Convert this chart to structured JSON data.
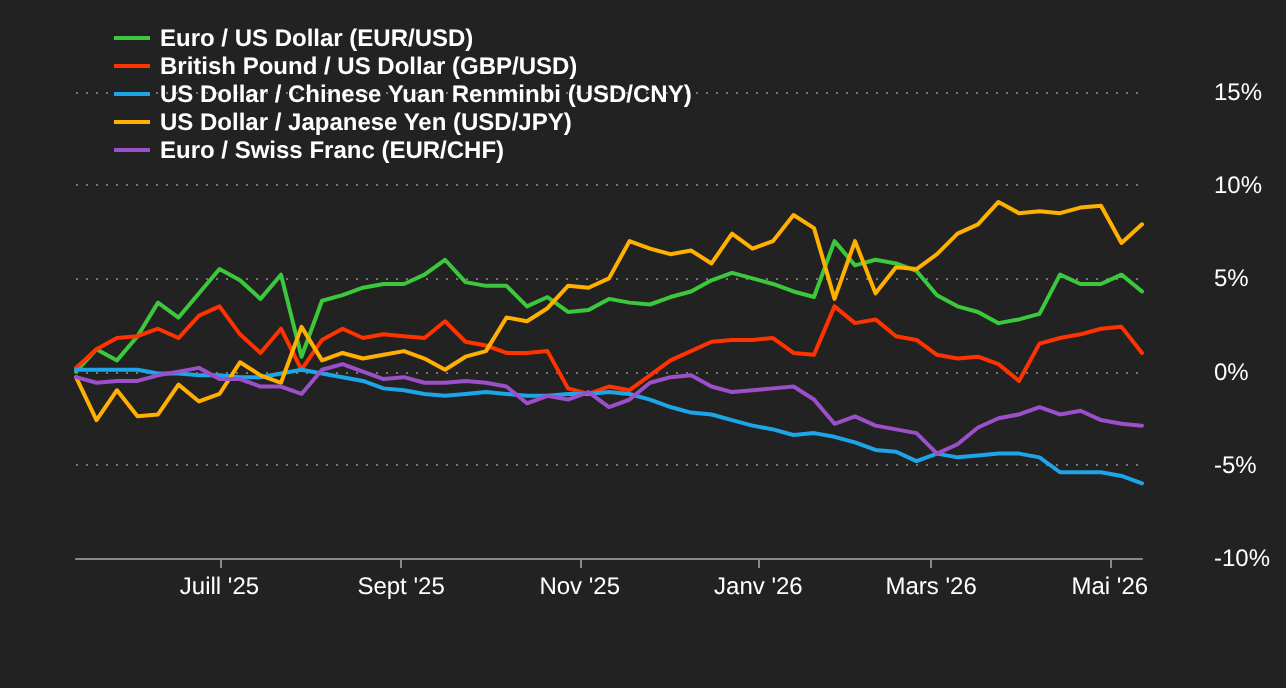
{
  "chart_data": {
    "type": "line",
    "x": [
      "2025-05-13",
      "2025-05-20",
      "2025-05-27",
      "2025-06-03",
      "2025-06-10",
      "2025-06-17",
      "2025-06-24",
      "2025-07-01",
      "2025-07-08",
      "2025-07-15",
      "2025-07-22",
      "2025-07-29",
      "2025-08-05",
      "2025-08-12",
      "2025-08-19",
      "2025-08-26",
      "2025-09-02",
      "2025-09-09",
      "2025-09-16",
      "2025-09-23",
      "2025-09-30",
      "2025-10-07",
      "2025-10-14",
      "2025-10-21",
      "2025-10-28",
      "2025-11-04",
      "2025-11-11",
      "2025-11-18",
      "2025-11-25",
      "2025-12-02",
      "2025-12-09",
      "2025-12-16",
      "2025-12-23",
      "2025-12-30",
      "2026-01-06",
      "2026-01-13",
      "2026-01-20",
      "2026-01-27",
      "2026-02-03",
      "2026-02-10",
      "2026-02-17",
      "2026-02-24",
      "2026-03-03",
      "2026-03-10",
      "2026-03-17",
      "2026-03-24",
      "2026-03-31",
      "2026-04-07",
      "2026-04-14",
      "2026-04-21",
      "2026-04-28",
      "2026-05-05",
      "2026-05-12"
    ],
    "series": [
      {
        "name": "Euro / US Dollar (EUR/USD)",
        "color": "#3cc83c",
        "values": [
          0,
          1.2,
          0.6,
          1.9,
          3.7,
          2.9,
          4.2,
          5.5,
          4.9,
          3.9,
          5.2,
          0.8,
          3.8,
          4.1,
          4.5,
          4.7,
          4.7,
          5.2,
          6.0,
          4.8,
          4.6,
          4.6,
          3.5,
          4.0,
          3.2,
          3.3,
          3.9,
          3.7,
          3.6,
          4.0,
          4.3,
          4.9,
          5.3,
          5.0,
          4.7,
          4.3,
          4.0,
          7.0,
          5.7,
          6.0,
          5.8,
          5.4,
          4.1,
          3.5,
          3.2,
          2.6,
          2.8,
          3.1,
          5.2,
          4.7,
          4.7,
          5.2,
          4.3
        ]
      },
      {
        "name": "British Pound / US Dollar (GBP/USD)",
        "color": "#ff3300",
        "values": [
          0.2,
          1.2,
          1.8,
          1.9,
          2.3,
          1.8,
          3.0,
          3.5,
          2.0,
          1.0,
          2.3,
          0.1,
          1.7,
          2.3,
          1.8,
          2.0,
          1.9,
          1.8,
          2.7,
          1.6,
          1.4,
          1.0,
          1.0,
          1.1,
          -0.9,
          -1.2,
          -0.8,
          -1.0,
          -0.2,
          0.6,
          1.1,
          1.6,
          1.7,
          1.7,
          1.8,
          1.0,
          0.9,
          3.5,
          2.6,
          2.8,
          1.9,
          1.7,
          0.9,
          0.7,
          0.8,
          0.4,
          -0.5,
          1.5,
          1.8,
          2.0,
          2.3,
          2.4,
          1.0
        ]
      },
      {
        "name": "US Dollar / Chinese Yuan Renminbi (USD/CNY)",
        "color": "#1ea5e8",
        "values": [
          0.1,
          0.1,
          0.1,
          0.1,
          -0.1,
          -0.1,
          -0.2,
          -0.2,
          -0.3,
          -0.3,
          -0.1,
          0.1,
          -0.1,
          -0.3,
          -0.5,
          -0.9,
          -1.0,
          -1.2,
          -1.3,
          -1.2,
          -1.1,
          -1.2,
          -1.3,
          -1.3,
          -1.2,
          -1.2,
          -1.1,
          -1.2,
          -1.5,
          -1.9,
          -2.2,
          -2.3,
          -2.6,
          -2.9,
          -3.1,
          -3.4,
          -3.3,
          -3.5,
          -3.8,
          -4.2,
          -4.3,
          -4.8,
          -4.4,
          -4.6,
          -4.5,
          -4.4,
          -4.4,
          -4.6,
          -5.4,
          -5.4,
          -5.4,
          -5.6,
          -6.0
        ]
      },
      {
        "name": "US Dollar / Japanese Yen (USD/JPY)",
        "color": "#ffb000",
        "values": [
          -0.3,
          -2.6,
          -1.0,
          -2.4,
          -2.3,
          -0.7,
          -1.6,
          -1.2,
          0.5,
          -0.2,
          -0.6,
          2.4,
          0.6,
          1.0,
          0.7,
          0.9,
          1.1,
          0.7,
          0.1,
          0.8,
          1.1,
          2.9,
          2.7,
          3.4,
          4.6,
          4.5,
          5.0,
          7.0,
          6.6,
          6.3,
          6.5,
          5.8,
          7.4,
          6.6,
          7.0,
          8.4,
          7.7,
          3.9,
          7.0,
          4.2,
          5.6,
          5.5,
          6.3,
          7.4,
          7.9,
          9.1,
          8.5,
          8.6,
          8.5,
          8.8,
          8.9,
          6.9,
          7.9
        ]
      },
      {
        "name": "Euro / Swiss Franc (EUR/CHF)",
        "color": "#9b4fc8",
        "values": [
          -0.3,
          -0.6,
          -0.5,
          -0.5,
          -0.2,
          0,
          0.2,
          -0.4,
          -0.4,
          -0.8,
          -0.8,
          -1.2,
          0.1,
          0.4,
          0,
          -0.4,
          -0.3,
          -0.6,
          -0.6,
          -0.5,
          -0.6,
          -0.8,
          -1.7,
          -1.3,
          -1.5,
          -1.1,
          -1.9,
          -1.5,
          -0.6,
          -0.3,
          -0.2,
          -0.8,
          -1.1,
          -1.0,
          -0.9,
          -0.8,
          -1.5,
          -2.8,
          -2.4,
          -2.9,
          -3.1,
          -3.3,
          -4.4,
          -3.9,
          -3.0,
          -2.5,
          -2.3,
          -1.9,
          -2.3,
          -2.1,
          -2.6,
          -2.8,
          -2.9
        ]
      }
    ],
    "xlim": [
      "2025-05-13",
      "2026-05-12"
    ],
    "xticks": [
      {
        "value": "2025-07-01",
        "label": "Juill '25"
      },
      {
        "value": "2025-09-01",
        "label": "Sept '25"
      },
      {
        "value": "2025-11-01",
        "label": "Nov '25"
      },
      {
        "value": "2026-01-01",
        "label": "Janv '26"
      },
      {
        "value": "2026-03-01",
        "label": "Mars '26"
      },
      {
        "value": "2026-05-01",
        "label": "Mai '26"
      }
    ],
    "ylim": [
      -10,
      15
    ],
    "yticks": [
      {
        "value": -10,
        "label": "-10%"
      },
      {
        "value": -5,
        "label": "-5%"
      },
      {
        "value": 0,
        "label": "0%"
      },
      {
        "value": 5,
        "label": "5%"
      },
      {
        "value": 10,
        "label": "10%"
      },
      {
        "value": 15,
        "label": "15%"
      }
    ],
    "grid": "y",
    "legend": "top left",
    "marker": "none",
    "line_style": "solid"
  }
}
